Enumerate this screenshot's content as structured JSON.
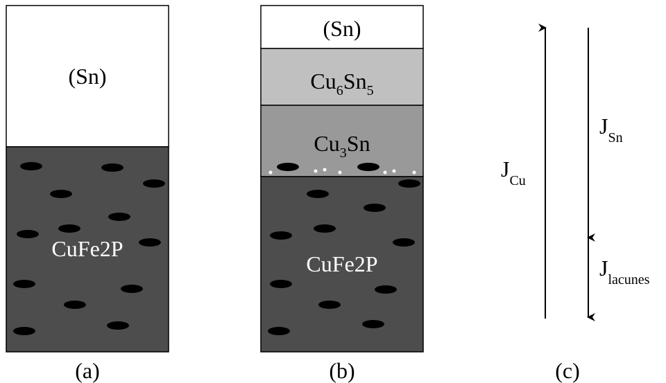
{
  "panels": [
    {
      "layers": [
        {
          "label": [
            "(Sn)"
          ]
        },
        {
          "label": [
            "CuFe2P"
          ]
        }
      ],
      "caption": "(a)"
    },
    {
      "layers": [
        {
          "label": [
            "(Sn)"
          ]
        },
        {
          "label": [
            "Cu",
            "6",
            "Sn",
            "5"
          ]
        },
        {
          "label": [
            "Cu",
            "3",
            "Sn"
          ]
        },
        {
          "label": [
            "CuFe2P"
          ]
        }
      ],
      "caption": "(b)"
    },
    {
      "fluxes": [
        {
          "symbol": "J",
          "sub": "Cu"
        },
        {
          "symbol": "J",
          "sub": "Sn"
        },
        {
          "symbol": "J",
          "sub": "lacunes"
        }
      ],
      "caption": "(c)"
    }
  ]
}
